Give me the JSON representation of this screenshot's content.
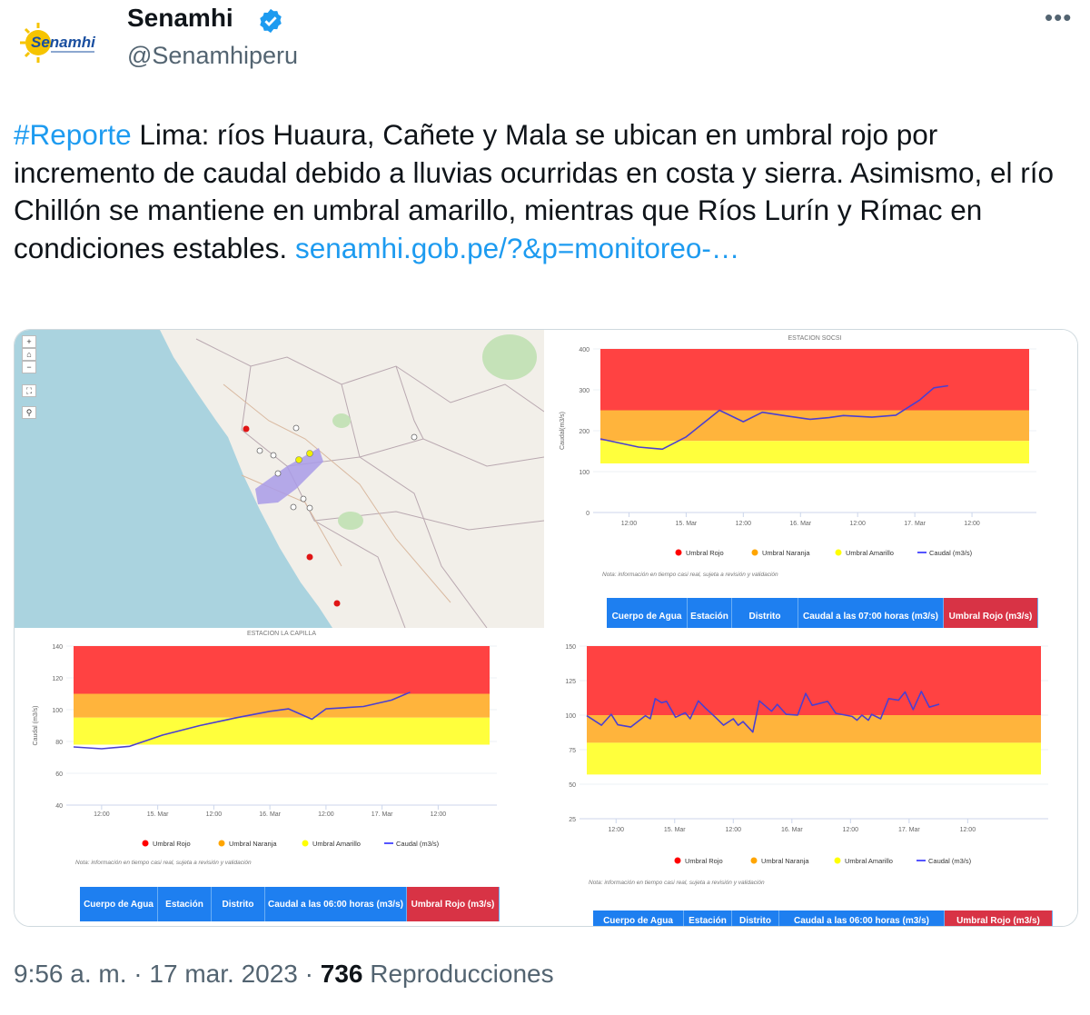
{
  "tweet": {
    "author_name": "Senamhi",
    "author_handle": "@Senamhiperu",
    "verified": true,
    "avatar_logo_text": "Senamhi",
    "more_icon": "more-horizontal-icon",
    "hashtag": "#Reporte",
    "body": " Lima: ríos Huaura, Cañete y Mala se ubican en umbral rojo por incremento de caudal debido a lluvias ocurridas en costa y sierra. Asimismo, el río Chillón se mantiene en umbral amarillo, mientras que Ríos Lurín y Rímac en condiciones estables. ",
    "link": "senamhi.gob.pe/?&p=monitoreo-…",
    "time": "9:56 a. m.",
    "date": "17 mar. 2023",
    "views_count": "736",
    "views_label": "Reproducciones",
    "separator": "·"
  },
  "map": {
    "zoom_in": "+",
    "zoom_out": "−",
    "colors": {
      "land": "#f2efe9",
      "ocean": "#aad3df",
      "basin": "#a99be8"
    }
  },
  "chart_labels": {
    "legend": [
      "Umbral Rojo",
      "Umbral Naranja",
      "Umbral Amarillo",
      "Caudal (m3/s)"
    ],
    "note": "Nota: información en tiempo casi real, sujeta a revisión y validación",
    "legend_colors": [
      "#ff0000",
      "#ffa500",
      "#ffff00",
      "#5555ff"
    ],
    "band_colors": {
      "rojo": "#ff4242",
      "naranja": "#ffb43c",
      "amarillo": "#ffff3c"
    },
    "line_color": "#4b3fd1",
    "table_red": "#d83345",
    "table_blue": "#1e7ff0"
  },
  "chart_data": [
    {
      "type": "line",
      "title": "ESTACION SOCSI",
      "ylabel": "Caudal(m3/s)",
      "ylim": [
        0,
        400
      ],
      "yticks": [
        0,
        100,
        200,
        300,
        400
      ],
      "xlim": [
        "14/03 06:00",
        "18/03 00:00"
      ],
      "xticks": [
        [
          "14/03 12:00",
          "12:00"
        ],
        [
          "15/03 00:00",
          "15. Mar"
        ],
        [
          "15/03 12:00",
          "12:00"
        ],
        [
          "16/03 00:00",
          "16. Mar"
        ],
        [
          "16/03 12:00",
          "12:00"
        ],
        [
          "17/03 00:00",
          "17. Mar"
        ],
        [
          "17/03 12:00",
          "12:00"
        ]
      ],
      "bands": {
        "amarillo": [
          120,
          175
        ],
        "naranja": [
          175,
          250
        ],
        "rojo": [
          250,
          400
        ]
      },
      "grid": true,
      "legend_position": "bottom",
      "series": [
        {
          "name": "Caudal (m3/s)",
          "points": [
            [
              "14/03 06:00",
              180
            ],
            [
              "14/03 14:00",
              160
            ],
            [
              "14/03 19:00",
              155
            ],
            [
              "15/03 00:00",
              185
            ],
            [
              "15/03 07:00",
              250
            ],
            [
              "15/03 12:00",
              222
            ],
            [
              "15/03 16:00",
              245
            ],
            [
              "15/03 20:00",
              238
            ],
            [
              "16/03 02:00",
              228
            ],
            [
              "16/03 06:00",
              232
            ],
            [
              "16/03 09:00",
              237
            ],
            [
              "16/03 15:00",
              233
            ],
            [
              "16/03 20:00",
              238
            ],
            [
              "17/03 01:00",
              275
            ],
            [
              "17/03 04:00",
              305
            ],
            [
              "17/03 07:00",
              310
            ]
          ]
        }
      ],
      "table_headers": [
        "Cuerpo de Agua",
        "Estación",
        "Distrito",
        "Caudal a las 07:00 horas (m3/s)",
        "Umbral Rojo (m3/s)"
      ]
    },
    {
      "type": "line",
      "title": "ESTACION LA CAPILLA",
      "ylabel": "Caudal (m3/s)",
      "ylim": [
        40,
        140
      ],
      "yticks": [
        40,
        60,
        80,
        100,
        120,
        140
      ],
      "xlim": [
        "14/03 06:00",
        "17/03 23:00"
      ],
      "xticks": [
        [
          "14/03 12:00",
          "12:00"
        ],
        [
          "15/03 00:00",
          "15. Mar"
        ],
        [
          "15/03 12:00",
          "12:00"
        ],
        [
          "16/03 00:00",
          "16. Mar"
        ],
        [
          "16/03 12:00",
          "12:00"
        ],
        [
          "17/03 00:00",
          "17. Mar"
        ],
        [
          "17/03 12:00",
          "12:00"
        ]
      ],
      "bands": {
        "amarillo": [
          78,
          95
        ],
        "naranja": [
          95,
          110
        ],
        "rojo": [
          110,
          140
        ]
      },
      "grid": true,
      "legend_position": "bottom",
      "series": [
        {
          "name": "Caudal (m3/s)",
          "points": [
            [
              "14/03 06:00",
              76.6
            ],
            [
              "14/03 12:00",
              75.4
            ],
            [
              "14/03 18:00",
              77
            ],
            [
              "15/03 01:00",
              84
            ],
            [
              "15/03 09:00",
              90
            ],
            [
              "15/03 17:00",
              95
            ],
            [
              "16/03 00:00",
              99
            ],
            [
              "16/03 04:00",
              100.5
            ],
            [
              "16/03 09:00",
              94
            ],
            [
              "16/03 12:00",
              100.5
            ],
            [
              "16/03 20:00",
              102
            ],
            [
              "17/03 02:00",
              106
            ],
            [
              "17/03 06:00",
              111
            ]
          ]
        }
      ],
      "table_headers": [
        "Cuerpo de Agua",
        "Estación",
        "Distrito",
        "Caudal a las 06:00 horas (m3/s)",
        "Umbral Rojo (m3/s)"
      ]
    },
    {
      "type": "line",
      "ylim": [
        25,
        150
      ],
      "yticks": [
        25,
        50,
        75,
        100,
        125,
        150
      ],
      "xlim": [
        "14/03 06:00",
        "18/03 03:00"
      ],
      "xticks": [
        [
          "14/03 12:00",
          "12:00"
        ],
        [
          "15/03 00:00",
          "15. Mar"
        ],
        [
          "15/03 12:00",
          "12:00"
        ],
        [
          "16/03 00:00",
          "16. Mar"
        ],
        [
          "16/03 12:00",
          "12:00"
        ],
        [
          "17/03 00:00",
          "17. Mar"
        ],
        [
          "17/03 12:00",
          "12:00"
        ]
      ],
      "bands": {
        "amarillo": [
          57,
          80
        ],
        "naranja": [
          80,
          100
        ],
        "rojo": [
          100,
          150
        ]
      },
      "grid": true,
      "legend_position": "bottom",
      "series": [
        {
          "name": "Caudal (m3/s)",
          "points": [
            [
              "14/03 06:00",
              99.6
            ],
            [
              "14/03 09:00",
              92.7
            ],
            [
              "14/03 11:00",
              100.6
            ],
            [
              "14/03 12:20",
              93
            ],
            [
              "14/03 15:00",
              91.4
            ],
            [
              "14/03 18:00",
              99.6
            ],
            [
              "14/03 19:00",
              97.4
            ],
            [
              "14/03 20:00",
              112
            ],
            [
              "14/03 21:20",
              109
            ],
            [
              "14/03 22:20",
              110
            ],
            [
              "15/03 00:10",
              98.5
            ],
            [
              "15/03 02:10",
              101.7
            ],
            [
              "15/03 03:10",
              97.4
            ],
            [
              "15/03 04:50",
              110.3
            ],
            [
              "15/03 06:20",
              105
            ],
            [
              "15/03 08:20",
              98.5
            ],
            [
              "15/03 10:00",
              92.7
            ],
            [
              "15/03 12:00",
              97.4
            ],
            [
              "15/03 13:00",
              92.7
            ],
            [
              "15/03 14:00",
              95.3
            ],
            [
              "15/03 16:00",
              87.7
            ],
            [
              "15/03 17:20",
              110.3
            ],
            [
              "15/03 19:50",
              102.8
            ],
            [
              "15/03 21:00",
              107.8
            ],
            [
              "15/03 22:50",
              100.6
            ],
            [
              "16/03 01:10",
              100
            ],
            [
              "16/03 02:50",
              115.7
            ],
            [
              "16/03 04:10",
              107.1
            ],
            [
              "16/03 07:20",
              110
            ],
            [
              "16/03 09:00",
              101.3
            ],
            [
              "16/03 12:20",
              99.1
            ],
            [
              "16/03 13:20",
              96.3
            ],
            [
              "16/03 14:20",
              100
            ],
            [
              "16/03 15:40",
              96.3
            ],
            [
              "16/03 16:20",
              100.6
            ],
            [
              "16/03 18:10",
              97.4
            ],
            [
              "16/03 19:50",
              112
            ],
            [
              "16/03 21:50",
              110.8
            ],
            [
              "16/03 23:10",
              116.8
            ],
            [
              "17/03 00:50",
              104
            ],
            [
              "17/03 02:30",
              117.2
            ],
            [
              "17/03 04:10",
              105.8
            ],
            [
              "17/03 06:10",
              107.9
            ]
          ]
        }
      ],
      "table_headers": [
        "Cuerpo de Agua",
        "Estación",
        "Distrito",
        "Caudal a las 06:00 horas (m3/s)",
        "Umbral Rojo (m3/s)"
      ]
    }
  ]
}
